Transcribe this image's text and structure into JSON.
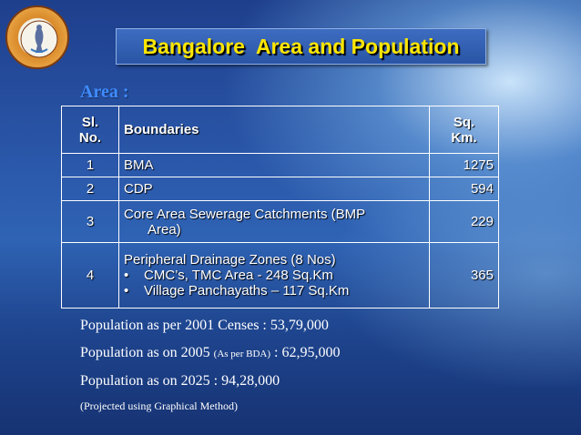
{
  "title": "Bangalore  Area and Population",
  "section": "Area :",
  "table": {
    "headers": {
      "sl": "Sl. No.",
      "boundaries": "Boundaries",
      "area": "Sq. Km."
    },
    "rows": [
      {
        "sl": "1",
        "boundary": "BMA",
        "area": "1275"
      },
      {
        "sl": "2",
        "boundary": "CDP",
        "area": "594"
      },
      {
        "sl": "3",
        "boundary_line1": "Core Area Sewerage Catchments (BMP",
        "boundary_line2": "Area)",
        "area": "229"
      },
      {
        "sl": "4",
        "boundary": "Peripheral Drainage Zones (8 Nos)",
        "bullets": [
          "CMC’s, TMC Area - 248 Sq.Km",
          "Village Panchayaths – 117 Sq.Km"
        ],
        "bullet_symbol": "•",
        "area": "365"
      }
    ]
  },
  "population": {
    "line1": "Population as per 2001 Censes : 53,79,000",
    "line2_prefix": "Population as on 2005 ",
    "line2_small": "(As per BDA)",
    "line2_suffix": " : 62,95,000",
    "line3": "Population as on 2025 : 94,28,000",
    "note": "(Projected using Graphical Method)"
  },
  "colors": {
    "title_text": "#ffe600",
    "section_head": "#3f8cff",
    "background": "#2a56a8"
  },
  "logo_icon": "municipal-seal-icon"
}
